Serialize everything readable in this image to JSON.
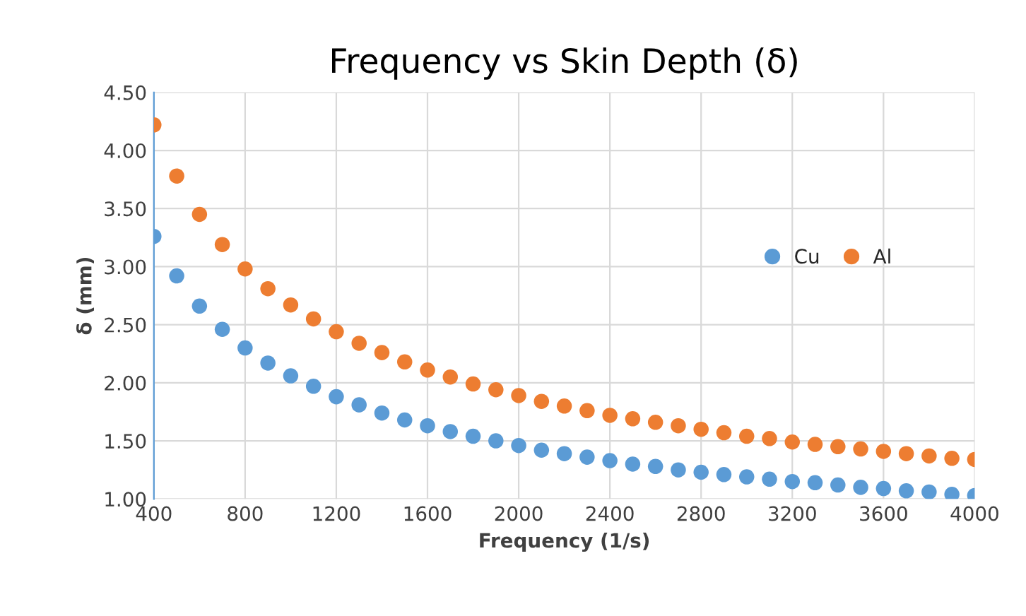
{
  "chart_data": {
    "type": "scatter",
    "title": "Frequency vs Skin Depth (δ)",
    "xlabel": "Frequency (1/s)",
    "ylabel": "δ (mm)",
    "x": [
      400,
      500,
      600,
      700,
      800,
      900,
      1000,
      1100,
      1200,
      1300,
      1400,
      1500,
      1600,
      1700,
      1800,
      1900,
      2000,
      2100,
      2200,
      2300,
      2400,
      2500,
      2600,
      2700,
      2800,
      2900,
      3000,
      3100,
      3200,
      3300,
      3400,
      3500,
      3600,
      3700,
      3800,
      3900,
      4000
    ],
    "series": [
      {
        "name": "Cu",
        "color": "#5b9bd5",
        "values": [
          3.26,
          2.92,
          2.66,
          2.46,
          2.3,
          2.17,
          2.06,
          1.97,
          1.88,
          1.81,
          1.74,
          1.68,
          1.63,
          1.58,
          1.54,
          1.5,
          1.46,
          1.42,
          1.39,
          1.36,
          1.33,
          1.3,
          1.28,
          1.25,
          1.23,
          1.21,
          1.19,
          1.17,
          1.15,
          1.14,
          1.12,
          1.1,
          1.09,
          1.07,
          1.06,
          1.04,
          1.03
        ]
      },
      {
        "name": "Al",
        "color": "#ed7d31",
        "values": [
          4.22,
          3.78,
          3.45,
          3.19,
          2.98,
          2.81,
          2.67,
          2.55,
          2.44,
          2.34,
          2.26,
          2.18,
          2.11,
          2.05,
          1.99,
          1.94,
          1.89,
          1.84,
          1.8,
          1.76,
          1.72,
          1.69,
          1.66,
          1.63,
          1.6,
          1.57,
          1.54,
          1.52,
          1.49,
          1.47,
          1.45,
          1.43,
          1.41,
          1.39,
          1.37,
          1.35,
          1.34
        ]
      }
    ],
    "xlim": [
      400,
      4000
    ],
    "xticks": [
      400,
      800,
      1200,
      1600,
      2000,
      2400,
      2800,
      3200,
      3600,
      4000
    ],
    "ylim": [
      1.0,
      4.5
    ],
    "yticks": [
      {
        "value": 1.0,
        "label": "1.00"
      },
      {
        "value": 1.5,
        "label": "1.50"
      },
      {
        "value": 2.0,
        "label": "2.00"
      },
      {
        "value": 2.5,
        "label": "2.50"
      },
      {
        "value": 3.0,
        "label": "3.00"
      },
      {
        "value": 3.5,
        "label": "3.50"
      },
      {
        "value": 4.0,
        "label": "4.00"
      },
      {
        "value": 4.5,
        "label": "4.50"
      }
    ],
    "grid": true,
    "legend": "top right",
    "marker": "circle"
  }
}
